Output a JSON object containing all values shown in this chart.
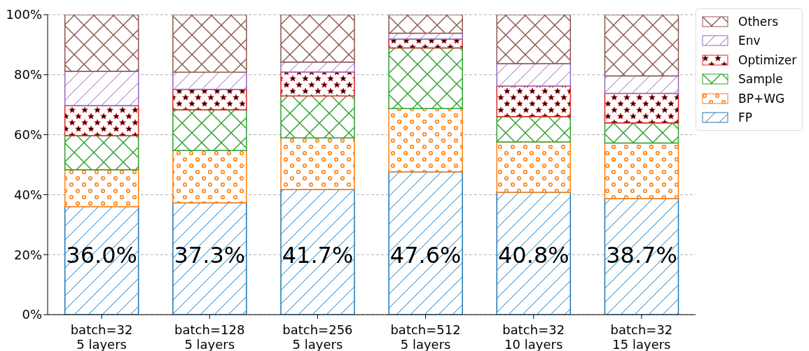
{
  "chart_data": {
    "type": "bar",
    "stacked": true,
    "categories": [
      "batch=32\n5 layers",
      "batch=128\n5 layers",
      "batch=256\n5 layers",
      "batch=512\n5 layers",
      "batch=32\n10 layers",
      "batch=32\n15 layers"
    ],
    "series": [
      {
        "name": "FP",
        "color": "#1f77b4",
        "values": [
          36.0,
          37.3,
          41.7,
          47.6,
          40.8,
          38.7
        ],
        "value_labels": [
          "36.0%",
          "37.3%",
          "41.7%",
          "47.6%",
          "40.8%",
          "38.7%"
        ]
      },
      {
        "name": "BP+WG",
        "color": "#ff7f0e",
        "values": [
          12.3,
          17.4,
          17.2,
          21.1,
          16.8,
          18.5
        ]
      },
      {
        "name": "Sample",
        "color": "#2ca02c",
        "values": [
          11.4,
          13.6,
          14.0,
          20.2,
          8.4,
          6.7
        ]
      },
      {
        "name": "Optimizer",
        "color": "#d62728",
        "values": [
          10.0,
          6.8,
          8.0,
          3.0,
          10.2,
          9.9
        ]
      },
      {
        "name": "Env",
        "color": "#9467bd",
        "values": [
          11.4,
          5.7,
          3.3,
          1.9,
          7.5,
          5.8
        ]
      },
      {
        "name": "Others",
        "color": "#8c564b",
        "values": [
          18.9,
          19.2,
          15.8,
          6.2,
          16.3,
          20.4
        ]
      }
    ],
    "ylim": [
      0,
      100
    ],
    "yticks": [
      {
        "value": 0,
        "label": "0%"
      },
      {
        "value": 20,
        "label": "20%"
      },
      {
        "value": 40,
        "label": "40%"
      },
      {
        "value": 60,
        "label": "60%"
      },
      {
        "value": 80,
        "label": "80%"
      },
      {
        "value": 100,
        "label": "100%"
      }
    ],
    "grid": "y",
    "legend": "top right"
  }
}
